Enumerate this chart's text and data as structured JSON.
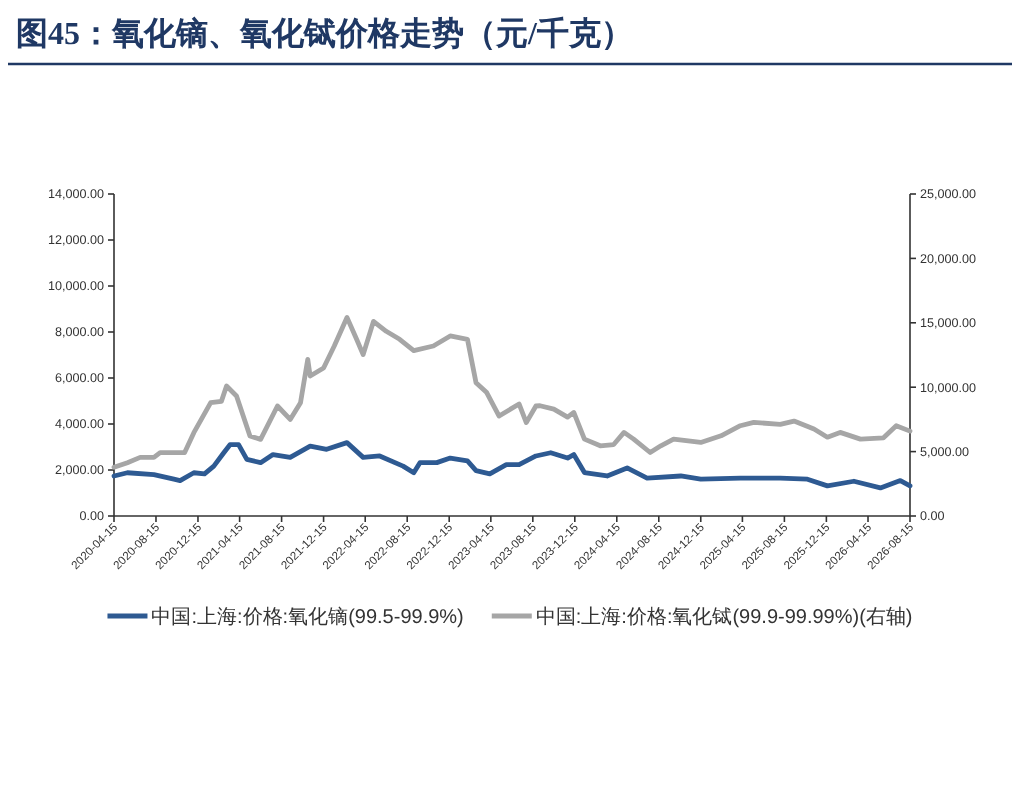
{
  "chart_data": {
    "type": "line",
    "title": "图45：氧化镝、氧化铽价格走势（元/千克）",
    "legend": "bottom",
    "grid": false,
    "xlim": [
      "2020-04-15",
      "2026-08-15"
    ],
    "xticks": [
      "2020-04-15",
      "2020-08-15",
      "2020-12-15",
      "2021-04-15",
      "2021-08-15",
      "2021-12-15",
      "2022-04-15",
      "2022-08-15",
      "2022-12-15",
      "2023-04-15",
      "2023-08-15",
      "2023-12-15",
      "2024-04-15",
      "2024-08-15",
      "2024-12-15",
      "2025-04-15",
      "2025-08-15",
      "2025-12-15",
      "2026-04-15",
      "2026-08-15"
    ],
    "ylim": [
      0,
      14000
    ],
    "yticks": [
      {
        "value": 0,
        "label": "0.00"
      },
      {
        "value": 2000,
        "label": "2,000.00"
      },
      {
        "value": 4000,
        "label": "4,000.00"
      },
      {
        "value": 6000,
        "label": "6,000.00"
      },
      {
        "value": 8000,
        "label": "8,000.00"
      },
      {
        "value": 10000,
        "label": "10,000.00"
      },
      {
        "value": 12000,
        "label": "12,000.00"
      },
      {
        "value": 14000,
        "label": "14,000.00"
      }
    ],
    "y2lim": [
      0,
      25000
    ],
    "y2ticks": [
      {
        "value": 0,
        "label": "0.00"
      },
      {
        "value": 5000,
        "label": "5,000.00"
      },
      {
        "value": 10000,
        "label": "10,000.00"
      },
      {
        "value": 15000,
        "label": "15,000.00"
      },
      {
        "value": 20000,
        "label": "20,000.00"
      },
      {
        "value": 25000,
        "label": "25,000.00"
      }
    ],
    "series": [
      {
        "name": "中国:上海:价格:氧化镝(99.5-99.9%)",
        "color": "#2e5a92",
        "axis": "y",
        "x": [
          "2020-04-15",
          "2020-05-24",
          "2020-08-09",
          "2020-10-06",
          "2020-10-24",
          "2020-12-03",
          "2021-01-03",
          "2021-01-30",
          "2021-02-28",
          "2021-03-18",
          "2021-04-12",
          "2021-05-06",
          "2021-06-15",
          "2021-07-21",
          "2021-09-09",
          "2021-11-06",
          "2021-12-24",
          "2022-02-21",
          "2022-04-09",
          "2022-05-27",
          "2022-08-03",
          "2022-09-03",
          "2022-09-21",
          "2022-11-09",
          "2022-12-18",
          "2023-02-06",
          "2023-03-03",
          "2023-04-12",
          "2023-05-30",
          "2023-07-06",
          "2023-08-24",
          "2023-10-06",
          "2023-11-24",
          "2023-12-12",
          "2024-01-12",
          "2024-03-18",
          "2024-05-15",
          "2024-07-12",
          "2024-10-18",
          "2024-12-15",
          "2025-04-09",
          "2025-08-03",
          "2025-10-21",
          "2025-12-18",
          "2026-03-05",
          "2026-05-21",
          "2026-07-18",
          "2026-08-15"
        ],
        "values": [
          1740,
          1880,
          1800,
          1600,
          1540,
          1880,
          1830,
          2170,
          2750,
          3100,
          3100,
          2460,
          2320,
          2670,
          2550,
          3040,
          2900,
          3190,
          2550,
          2610,
          2170,
          1880,
          2320,
          2320,
          2520,
          2400,
          1970,
          1830,
          2230,
          2230,
          2610,
          2750,
          2520,
          2670,
          1890,
          1740,
          2090,
          1650,
          1740,
          1600,
          1650,
          1650,
          1600,
          1310,
          1510,
          1220,
          1540,
          1310
        ]
      },
      {
        "name": "中国:上海:价格:氧化铽(99.9-99.99%)(右轴)",
        "color": "#a6a6a6",
        "axis": "y2",
        "x": [
          "2020-04-15",
          "2020-05-24",
          "2020-06-30",
          "2020-08-09",
          "2020-08-27",
          "2020-11-06",
          "2020-12-03",
          "2021-01-21",
          "2021-02-21",
          "2021-03-08",
          "2021-04-06",
          "2021-05-15",
          "2021-06-15",
          "2021-08-03",
          "2021-09-09",
          "2021-10-09",
          "2021-10-30",
          "2021-11-06",
          "2021-12-15",
          "2022-01-15",
          "2022-02-21",
          "2022-03-21",
          "2022-04-09",
          "2022-05-09",
          "2022-06-15",
          "2022-07-24",
          "2022-09-03",
          "2022-10-30",
          "2022-12-18",
          "2023-02-06",
          "2023-03-03",
          "2023-04-03",
          "2023-05-09",
          "2023-07-06",
          "2023-07-27",
          "2023-08-24",
          "2023-09-05",
          "2023-10-15",
          "2023-11-24",
          "2023-12-12",
          "2024-01-12",
          "2024-02-27",
          "2024-04-06",
          "2024-05-06",
          "2024-06-03",
          "2024-07-21",
          "2024-08-21",
          "2024-09-27",
          "2024-12-15",
          "2025-02-12",
          "2025-04-09",
          "2025-05-18",
          "2025-08-03",
          "2025-09-12",
          "2025-11-09",
          "2025-12-18",
          "2026-01-24",
          "2026-03-24",
          "2026-05-30",
          "2026-07-06",
          "2026-08-15"
        ],
        "values": [
          3780,
          4140,
          4550,
          4550,
          4920,
          4920,
          6470,
          8800,
          8900,
          10090,
          9320,
          6210,
          5950,
          8540,
          7500,
          8800,
          12160,
          10870,
          11490,
          13200,
          15420,
          13720,
          12530,
          15110,
          14340,
          13720,
          12840,
          13200,
          13980,
          13720,
          10350,
          9580,
          7760,
          8700,
          7250,
          8540,
          8560,
          8300,
          7680,
          8040,
          5970,
          5450,
          5550,
          6490,
          5970,
          4930,
          5450,
          5970,
          5710,
          6230,
          7010,
          7270,
          7110,
          7370,
          6750,
          6120,
          6490,
          5970,
          6070,
          7010,
          6590
        ]
      }
    ]
  }
}
